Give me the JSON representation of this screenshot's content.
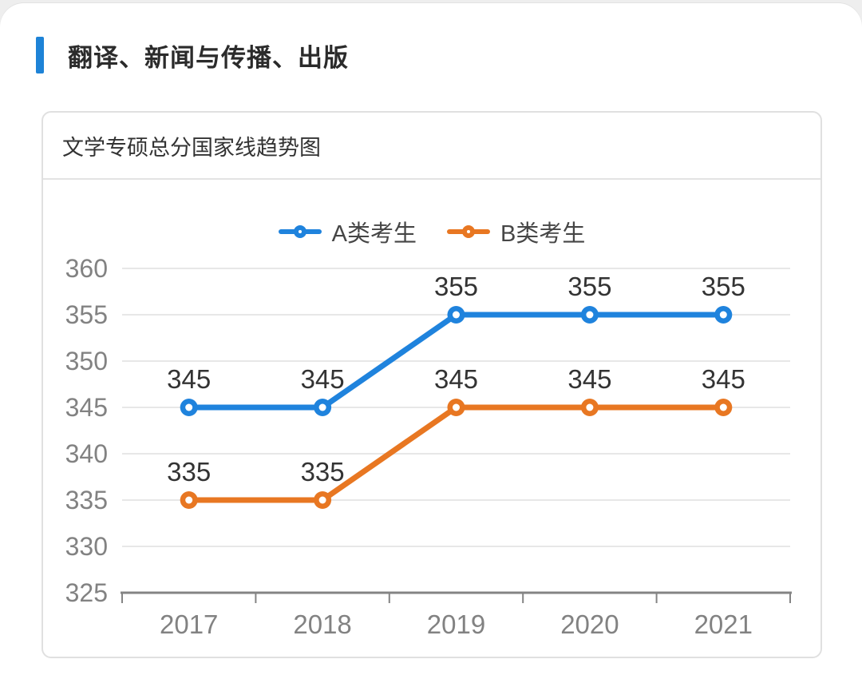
{
  "section": {
    "title": "翻译、新闻与传播、出版"
  },
  "card": {
    "title": "文学专硕总分国家线趋势图"
  },
  "colors": {
    "accent_blue": "#1e83d7",
    "series_a": "#1f83dd",
    "series_b": "#e87722",
    "grid_line": "#e7e7e7",
    "axis_line": "#848484",
    "axis_label": "#828282",
    "data_label": "#333333"
  },
  "chart_data": {
    "type": "line",
    "title": "文学专硕总分国家线趋势图",
    "categories": [
      "2017",
      "2018",
      "2019",
      "2020",
      "2021"
    ],
    "series": [
      {
        "name": "A类考生",
        "color": "#1f83dd",
        "values": [
          345,
          345,
          355,
          355,
          355
        ]
      },
      {
        "name": "B类考生",
        "color": "#e87722",
        "values": [
          335,
          335,
          345,
          345,
          345
        ]
      }
    ],
    "xlabel": "",
    "ylabel": "",
    "ylim": [
      325,
      360
    ],
    "y_step": 5,
    "y_ticks": [
      325,
      330,
      335,
      340,
      345,
      350,
      355,
      360
    ],
    "grid": true,
    "legend_position": "top",
    "data_labels": true
  }
}
